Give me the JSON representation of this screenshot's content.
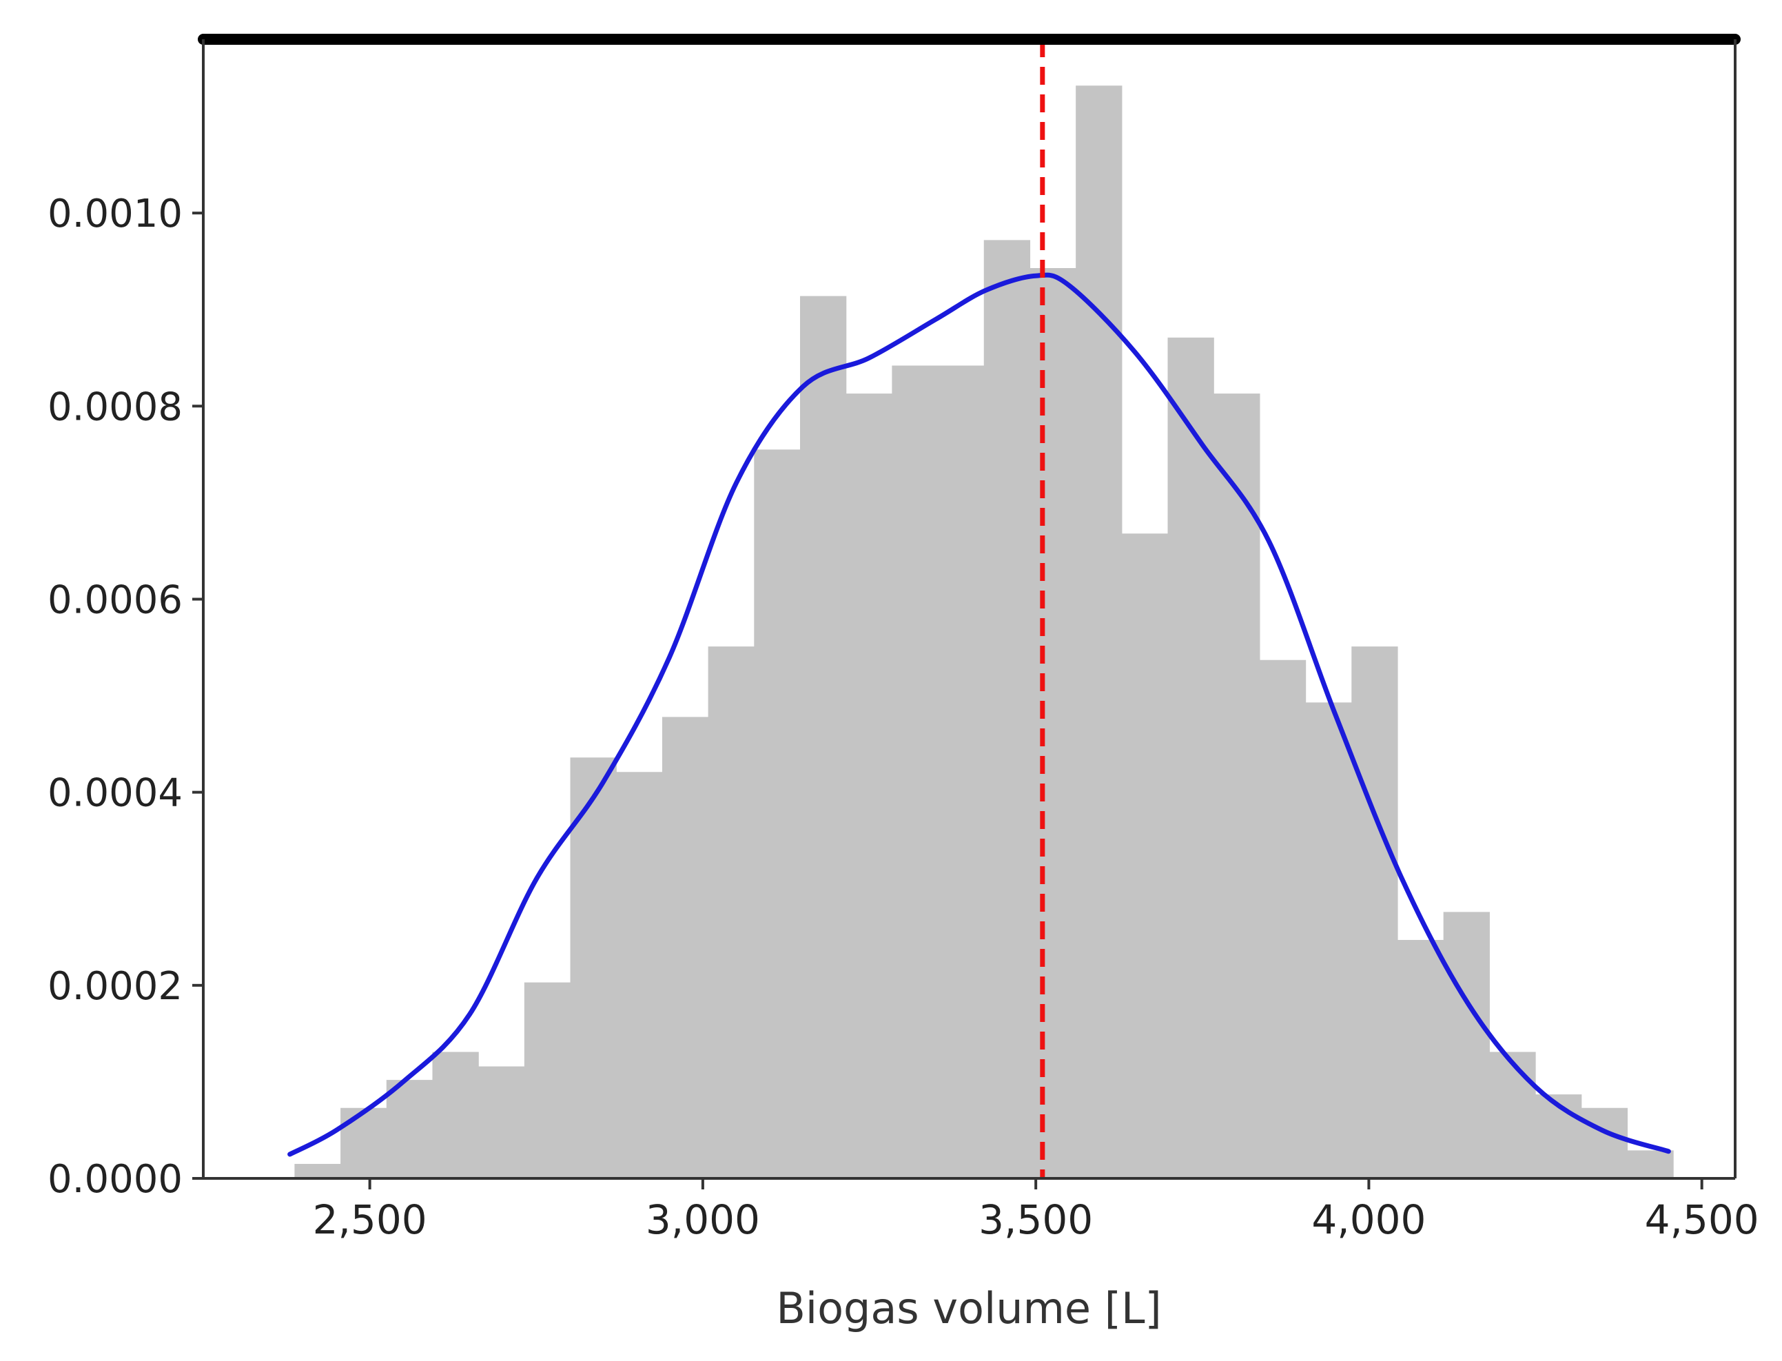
{
  "chart_data": {
    "type": "bar",
    "subtype": "histogram-with-density",
    "title": "",
    "xlabel": "Biogas volume [L]",
    "ylabel": "",
    "xlim": [
      2250,
      4550
    ],
    "ylim": [
      0,
      0.00118
    ],
    "x_ticks": [
      2500,
      3000,
      3500,
      4000,
      4500
    ],
    "x_tick_labels": [
      "2,500",
      "3,000",
      "3,500",
      "4,000",
      "4,500"
    ],
    "y_ticks": [
      0,
      0.0002,
      0.0004,
      0.0006,
      0.0008,
      0.001
    ],
    "y_tick_labels": [
      "0.0000",
      "0.0002",
      "0.0004",
      "0.0006",
      "0.0008",
      "0.0010"
    ],
    "bin_width": 69,
    "bin_edges": [
      2387,
      2456,
      2525,
      2594,
      2663,
      2732,
      2801,
      2870,
      2939,
      3008,
      3077,
      3146,
      3215,
      3284,
      3353,
      3422,
      3491,
      3560,
      3629,
      3698,
      3767,
      3836,
      3905,
      3974,
      4043,
      4112,
      4181,
      4250,
      4319,
      4388,
      4457
    ],
    "bin_values": [
      1.5e-05,
      7.3e-05,
      0.000102,
      0.000131,
      0.000116,
      0.000203,
      0.000436,
      0.000421,
      0.000478,
      0.000551,
      0.000755,
      0.000914,
      0.000813,
      0.000842,
      0.000842,
      0.000972,
      0.000943,
      0.001132,
      0.000668,
      0.000871,
      0.000813,
      0.000537,
      0.000493,
      0.000551,
      0.000247,
      0.000276,
      0.000131,
      8.7e-05,
      7.3e-05,
      2.9e-05
    ],
    "bar_color": "#c4c4c4",
    "density_curve": {
      "color": "#1a1adb",
      "x": [
        2380,
        2450,
        2550,
        2650,
        2750,
        2850,
        2950,
        3050,
        3150,
        3250,
        3350,
        3425,
        3500,
        3550,
        3650,
        3750,
        3850,
        3950,
        4050,
        4150,
        4250,
        4350,
        4450
      ],
      "y": [
        2.5e-05,
        5e-05,
        0.0001,
        0.00017,
        0.00031,
        0.00041,
        0.00054,
        0.00072,
        0.00082,
        0.00085,
        0.00089,
        0.00092,
        0.000935,
        0.000925,
        0.000855,
        0.00076,
        0.00066,
        0.00048,
        0.00031,
        0.00018,
        9.5e-05,
        5e-05,
        2.8e-05
      ]
    },
    "reference_line": {
      "x": 3510,
      "color": "#ee1111",
      "style": "dashed"
    },
    "grid": false,
    "legend": "none"
  }
}
